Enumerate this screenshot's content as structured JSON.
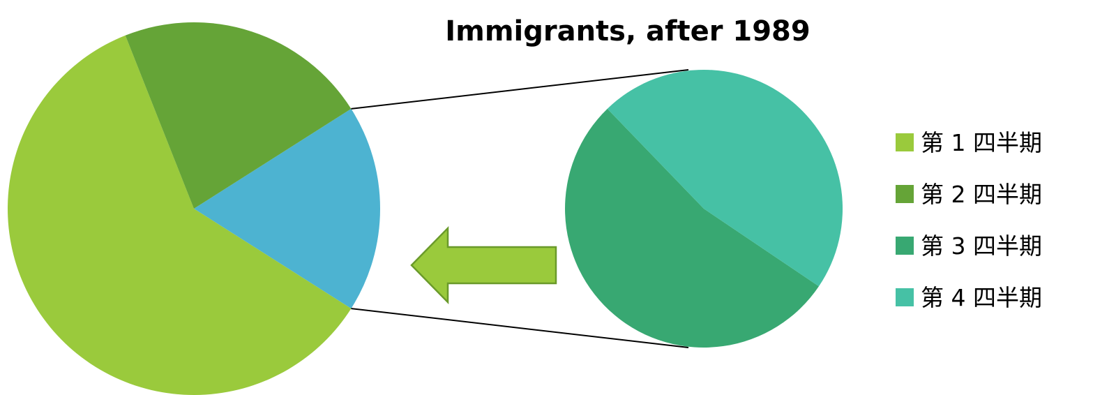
{
  "chart_data": {
    "type": "pie",
    "subtype": "bar-of-pie",
    "title": "Immigrants, after 1989",
    "categories": [
      "第 1 四半期",
      "第 2 四半期",
      "第 3 四半期",
      "第 4 四半期"
    ],
    "values": [
      60,
      22,
      9.6,
      8.4
    ],
    "colors": [
      "#9ACA3C",
      "#65A437",
      "#38A872",
      "#46C1A5"
    ],
    "other_color": "#4DB3D1",
    "main_pie": [
      "第 1 四半期",
      "第 2 四半期"
    ],
    "secondary_pie": [
      "第 3 四半期",
      "第 4 四半期"
    ],
    "legend_position": "right",
    "grid": false
  }
}
